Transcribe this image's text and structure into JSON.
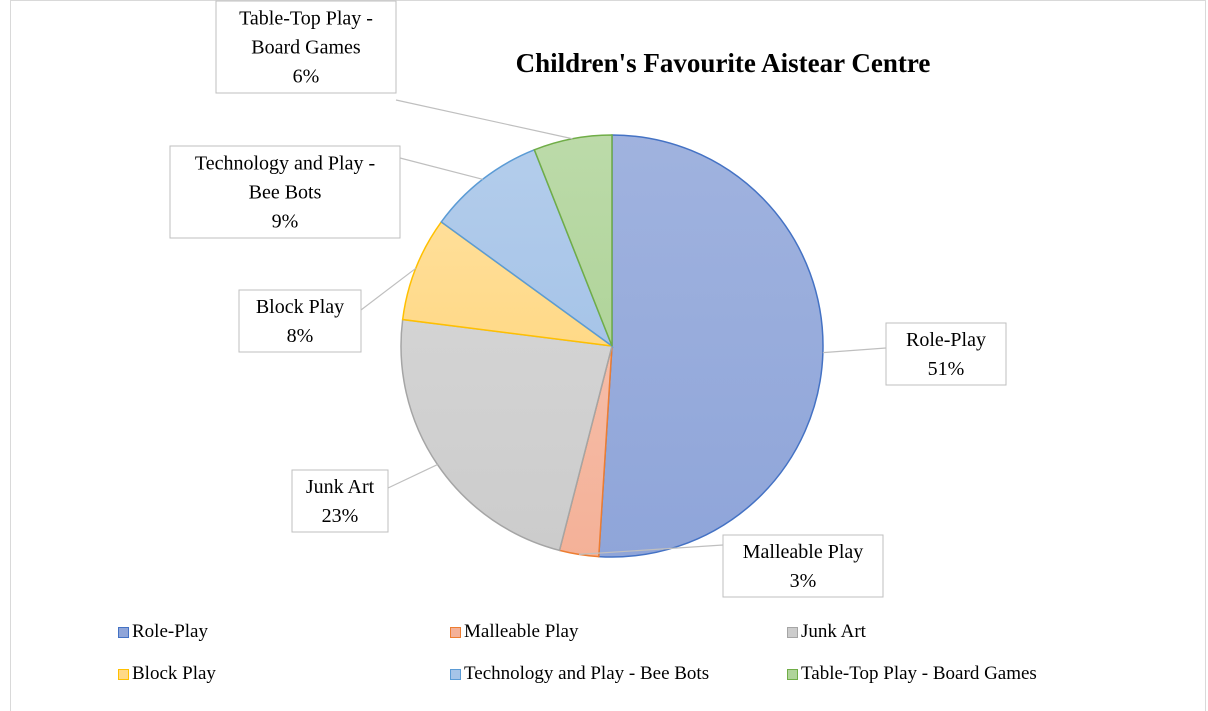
{
  "chart_data": {
    "type": "pie",
    "title": "Children's Favourite Aistear Centre",
    "start_angle_deg": 0,
    "direction": "clockwise",
    "slices": [
      {
        "name": "Role-Play",
        "value": 51,
        "label": "Role-Play",
        "pct": "51%",
        "fill": "#8fa5d9",
        "stroke": "#4472c4",
        "legend": "Role-Play"
      },
      {
        "name": "Malleable Play",
        "value": 3,
        "label": "Malleable Play",
        "pct": "3%",
        "fill": "#f4b198",
        "stroke": "#ed7d31",
        "legend": "Malleable Play"
      },
      {
        "name": "Junk Art",
        "value": 23,
        "label": "Junk Art",
        "pct": "23%",
        "fill": "#cccccc",
        "stroke": "#a5a5a5",
        "legend": "Junk Art"
      },
      {
        "name": "Block Play",
        "value": 8,
        "label": "Block Play",
        "pct": "8%",
        "fill": "#ffd987",
        "stroke": "#ffc000",
        "legend": "Block Play"
      },
      {
        "name": "Technology and Play - Bee Bots",
        "value": 9,
        "label": "Technology and Play -\nBee Bots",
        "pct": "9%",
        "fill": "#a6c4e8",
        "stroke": "#5b9bd5",
        "legend": "Technology and Play - Bee Bots"
      },
      {
        "name": "Table-Top Play - Board Games",
        "value": 6,
        "label": "Table-Top Play -\nBoard Games",
        "pct": "6%",
        "fill": "#b0d49a",
        "stroke": "#70ad47",
        "legend": "Table-Top Play - Board Games"
      }
    ],
    "legend_position": "bottom"
  }
}
